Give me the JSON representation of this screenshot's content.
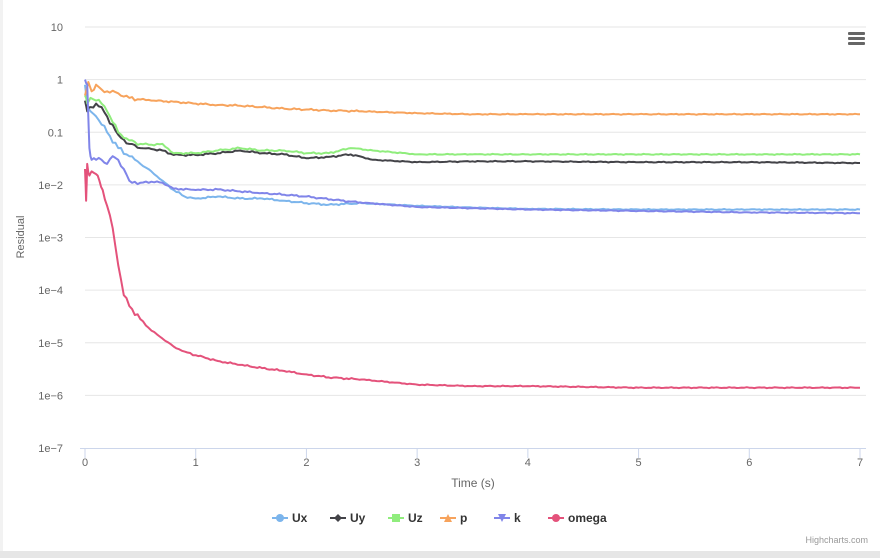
{
  "chart_data": {
    "type": "line",
    "title": "",
    "xlabel": "Time (s)",
    "ylabel": "Residual",
    "xlim": [
      0,
      7
    ],
    "ylim": [
      1e-07,
      10
    ],
    "y_scale": "log",
    "x_ticks": [
      "0",
      "1",
      "2",
      "3",
      "4",
      "5",
      "6",
      "7"
    ],
    "y_ticks": [
      "1e-7",
      "1e-6",
      "1e-5",
      "1e-4",
      "1e-3",
      "1e-2",
      "0.1",
      "1",
      "10"
    ],
    "grid": "horizontal",
    "legend_position": "bottom-center",
    "series": [
      {
        "name": "Ux",
        "color": "#7cb5ec",
        "marker": "circle",
        "x": [
          0,
          0.02,
          0.05,
          0.1,
          0.2,
          0.3,
          0.4,
          0.5,
          0.6,
          0.7,
          0.8,
          0.9,
          1.0,
          1.2,
          1.4,
          1.6,
          1.8,
          2.0,
          2.2,
          2.5,
          3.0,
          3.5,
          4.0,
          5.0,
          6.0,
          7.0
        ],
        "y": [
          0.8,
          0.3,
          0.25,
          0.2,
          0.1,
          0.05,
          0.035,
          0.025,
          0.018,
          0.012,
          0.008,
          0.006,
          0.0055,
          0.006,
          0.0055,
          0.0055,
          0.005,
          0.0045,
          0.0042,
          0.0045,
          0.004,
          0.0037,
          0.0035,
          0.0034,
          0.0034,
          0.0034
        ]
      },
      {
        "name": "Uy",
        "color": "#434348",
        "marker": "diamond",
        "x": [
          0,
          0.02,
          0.05,
          0.1,
          0.15,
          0.2,
          0.3,
          0.4,
          0.5,
          0.6,
          0.7,
          0.8,
          1.0,
          1.2,
          1.4,
          1.6,
          1.8,
          2.0,
          2.2,
          2.4,
          2.6,
          3.0,
          3.5,
          4.0,
          5.0,
          6.0,
          7.0
        ],
        "y": [
          0.4,
          0.25,
          0.3,
          0.35,
          0.3,
          0.2,
          0.09,
          0.06,
          0.05,
          0.048,
          0.045,
          0.037,
          0.037,
          0.04,
          0.045,
          0.04,
          0.038,
          0.032,
          0.034,
          0.038,
          0.03,
          0.027,
          0.028,
          0.028,
          0.027,
          0.027,
          0.026
        ]
      },
      {
        "name": "Uz",
        "color": "#90ed7d",
        "marker": "square",
        "x": [
          0,
          0.02,
          0.05,
          0.1,
          0.15,
          0.2,
          0.3,
          0.4,
          0.5,
          0.6,
          0.7,
          0.8,
          1.0,
          1.2,
          1.4,
          1.6,
          1.8,
          2.0,
          2.2,
          2.4,
          2.6,
          3.0,
          3.5,
          4.0,
          5.0,
          6.0,
          7.0
        ],
        "y": [
          0.5,
          0.35,
          0.45,
          0.4,
          0.35,
          0.25,
          0.1,
          0.07,
          0.06,
          0.058,
          0.06,
          0.04,
          0.04,
          0.045,
          0.05,
          0.045,
          0.045,
          0.04,
          0.04,
          0.05,
          0.045,
          0.038,
          0.038,
          0.038,
          0.038,
          0.038,
          0.038
        ]
      },
      {
        "name": "p",
        "color": "#f7a35c",
        "marker": "triangle",
        "x": [
          0,
          0.03,
          0.06,
          0.1,
          0.15,
          0.2,
          0.3,
          0.4,
          0.5,
          0.6,
          0.8,
          1.0,
          1.2,
          1.4,
          1.6,
          1.8,
          2.0,
          2.2,
          2.5,
          3.0,
          3.5,
          4.0,
          5.0,
          6.0,
          7.0
        ],
        "y": [
          0.5,
          0.9,
          0.6,
          0.8,
          0.65,
          0.6,
          0.55,
          0.45,
          0.42,
          0.4,
          0.38,
          0.35,
          0.33,
          0.32,
          0.3,
          0.28,
          0.27,
          0.26,
          0.25,
          0.23,
          0.22,
          0.22,
          0.22,
          0.22,
          0.22
        ]
      },
      {
        "name": "k",
        "color": "#8085e9",
        "marker": "triangle-down",
        "x": [
          0,
          0.02,
          0.04,
          0.06,
          0.1,
          0.15,
          0.2,
          0.25,
          0.3,
          0.35,
          0.4,
          0.5,
          0.6,
          0.7,
          0.8,
          1.0,
          1.2,
          1.4,
          1.6,
          1.8,
          2.0,
          2.4,
          3.0,
          3.5,
          4.0,
          5.0,
          6.0,
          7.0
        ],
        "y": [
          1.0,
          0.8,
          0.05,
          0.03,
          0.03,
          0.03,
          0.025,
          0.035,
          0.03,
          0.02,
          0.012,
          0.011,
          0.0115,
          0.011,
          0.0085,
          0.008,
          0.0082,
          0.0075,
          0.007,
          0.0065,
          0.006,
          0.0048,
          0.0038,
          0.0036,
          0.0034,
          0.0032,
          0.003,
          0.0029
        ]
      },
      {
        "name": "omega",
        "color": "#e4527b",
        "marker": "circle",
        "x": [
          0,
          0.01,
          0.02,
          0.04,
          0.06,
          0.1,
          0.13,
          0.16,
          0.2,
          0.25,
          0.3,
          0.35,
          0.4,
          0.5,
          0.6,
          0.7,
          0.8,
          0.9,
          1.0,
          1.2,
          1.4,
          1.6,
          1.8,
          2.0,
          2.2,
          2.5,
          3.0,
          3.5,
          4.0,
          5.0,
          6.0,
          7.0
        ],
        "y": [
          0.02,
          0.005,
          0.025,
          0.015,
          0.018,
          0.016,
          0.012,
          0.008,
          0.004,
          0.0015,
          0.0003,
          8e-05,
          5e-05,
          2.8e-05,
          1.7e-05,
          1.2e-05,
          8.5e-06,
          6.8e-06,
          5.8e-06,
          4.5e-06,
          3.8e-06,
          3.3e-06,
          2.9e-06,
          2.5e-06,
          2.2e-06,
          2e-06,
          1.6e-06,
          1.5e-06,
          1.5e-06,
          1.4e-06,
          1.4e-06,
          1.4e-06
        ]
      }
    ]
  },
  "credits": "Highcharts.com",
  "menu": {
    "icon": "hamburger-menu-icon"
  }
}
